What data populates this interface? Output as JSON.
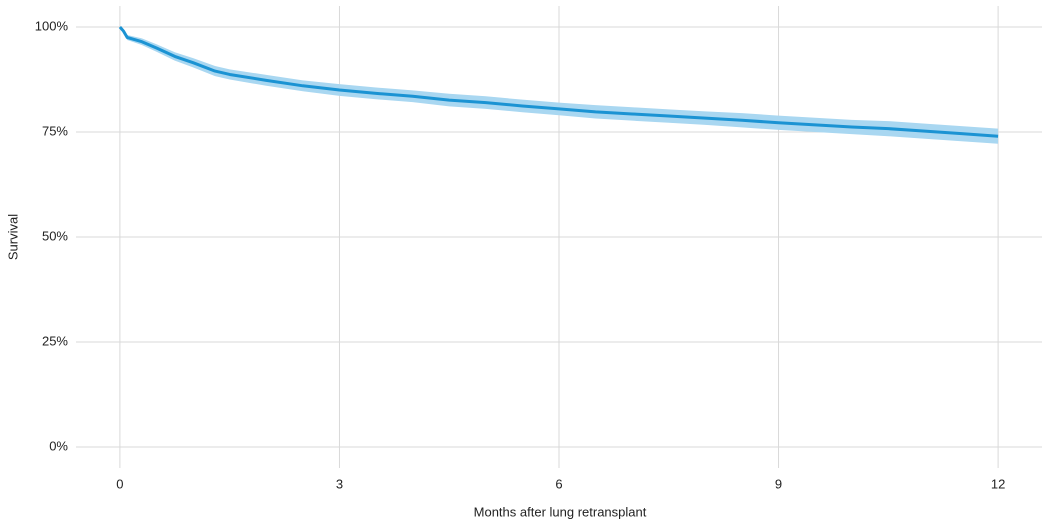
{
  "chart_data": {
    "type": "survival",
    "x_label": "Months after lung retransplant",
    "y_label": "Survival",
    "x": [
      0,
      0.05,
      0.1,
      0.3,
      0.5,
      0.75,
      1,
      1.3,
      1.5,
      2,
      2.5,
      3,
      3.5,
      4,
      4.5,
      5,
      5.5,
      6,
      6.5,
      7,
      7.5,
      8,
      8.5,
      9,
      9.5,
      10,
      10.5,
      11,
      11.5,
      12
    ],
    "values": [
      100,
      99,
      97.5,
      96.5,
      95,
      93,
      91.5,
      89.5,
      88.7,
      87.3,
      86,
      85,
      84.2,
      83.5,
      82.6,
      82,
      81.2,
      80.5,
      79.8,
      79.3,
      78.8,
      78.3,
      77.8,
      77.2,
      76.7,
      76.2,
      75.8,
      75.2,
      74.6,
      74
    ],
    "lower": [
      100,
      98.6,
      96.9,
      95.7,
      94.1,
      92,
      90.4,
      88.3,
      87.5,
      86,
      84.7,
      83.6,
      82.8,
      82.1,
      81.1,
      80.5,
      79.7,
      79,
      78.2,
      77.7,
      77.2,
      76.7,
      76.1,
      75.5,
      75,
      74.5,
      74,
      73.4,
      72.8,
      72.2
    ],
    "upper": [
      100,
      99.4,
      98.1,
      97.3,
      95.9,
      94,
      92.6,
      90.7,
      89.9,
      88.6,
      87.3,
      86.4,
      85.6,
      84.9,
      84.1,
      83.5,
      82.7,
      82,
      81.4,
      80.9,
      80.4,
      79.9,
      79.5,
      78.9,
      78.4,
      77.9,
      77.6,
      77,
      76.4,
      75.8
    ],
    "color": "#1b93d3",
    "band_color": "#a9d7f1",
    "xlim": [
      -0.6,
      12.6
    ],
    "ylim": [
      -5,
      105
    ],
    "xticks": [
      0,
      3,
      6,
      9,
      12
    ],
    "yticks": [
      {
        "value": 0,
        "label": "0%"
      },
      {
        "value": 25,
        "label": "25%"
      },
      {
        "value": 50,
        "label": "50%"
      },
      {
        "value": 75,
        "label": "75%"
      },
      {
        "value": 100,
        "label": "100%"
      }
    ],
    "grid": true
  }
}
